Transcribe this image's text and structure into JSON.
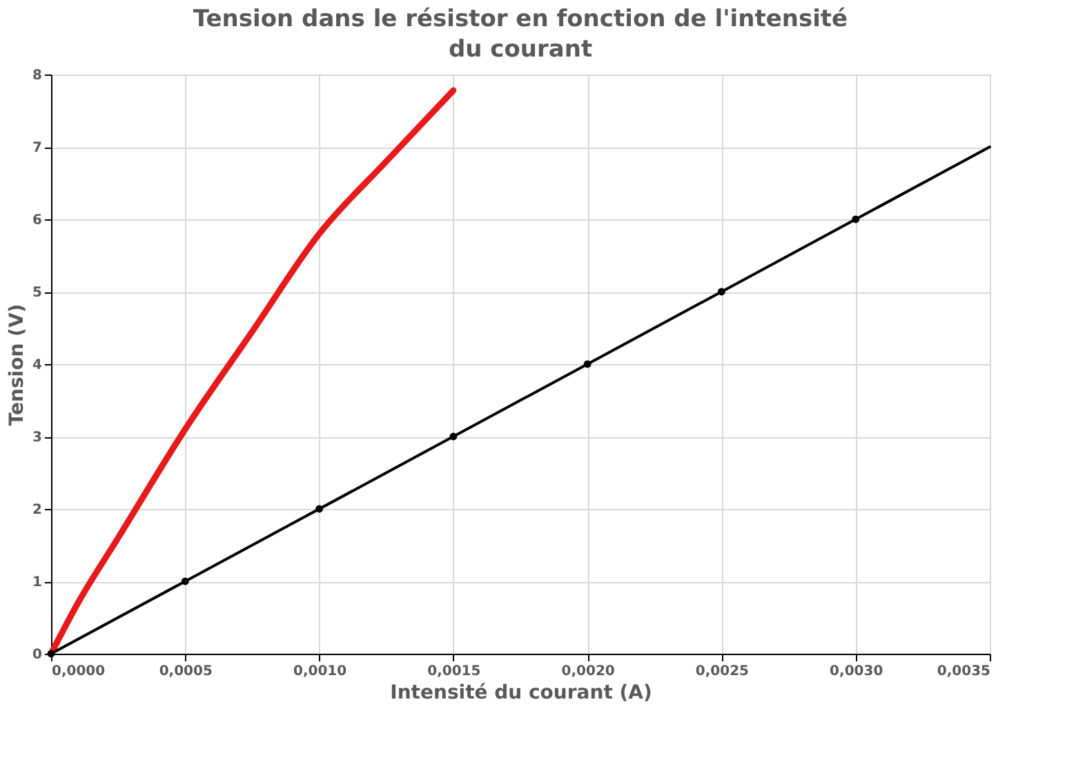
{
  "chart_data": {
    "type": "line",
    "title": "Tension dans le résistor en fonction de l'intensité du courant",
    "xlabel": "Intensité du courant (A)",
    "ylabel": "Tension (V)",
    "series": [
      {
        "color": "#e8191a",
        "x": [
          0,
          0.0001,
          0.00025,
          0.0005,
          0.00075,
          0.001,
          0.00125,
          0.0015
        ],
        "values": [
          0,
          0.7,
          1.6,
          3.1,
          4.45,
          5.8,
          6.8,
          7.78
        ]
      },
      {
        "color": "#000000",
        "x": [
          0,
          0.0035
        ],
        "values": [
          0,
          7
        ]
      },
      {
        "type": "scatter",
        "color": "#000000",
        "x": [
          0,
          0.0005,
          0.001,
          0.0015,
          0.002,
          0.0025,
          0.003
        ],
        "values": [
          0,
          1,
          2,
          3,
          4,
          5,
          6
        ],
        "marker": "circle"
      }
    ],
    "xlim": [
      0,
      0.0035
    ],
    "ylim": [
      0,
      8
    ],
    "xticks": [
      {
        "value": 0,
        "label": "0,0000"
      },
      {
        "value": 0.0005,
        "label": "0,0005"
      },
      {
        "value": 0.001,
        "label": "0,0010"
      },
      {
        "value": 0.0015,
        "label": "0,0015"
      },
      {
        "value": 0.002,
        "label": "0,0020"
      },
      {
        "value": 0.0025,
        "label": "0,0025"
      },
      {
        "value": 0.003,
        "label": "0,0030"
      },
      {
        "value": 0.0035,
        "label": "0,0035"
      }
    ],
    "yticks": [
      0,
      1,
      2,
      3,
      4,
      5,
      6,
      7,
      8
    ],
    "grid": true
  }
}
